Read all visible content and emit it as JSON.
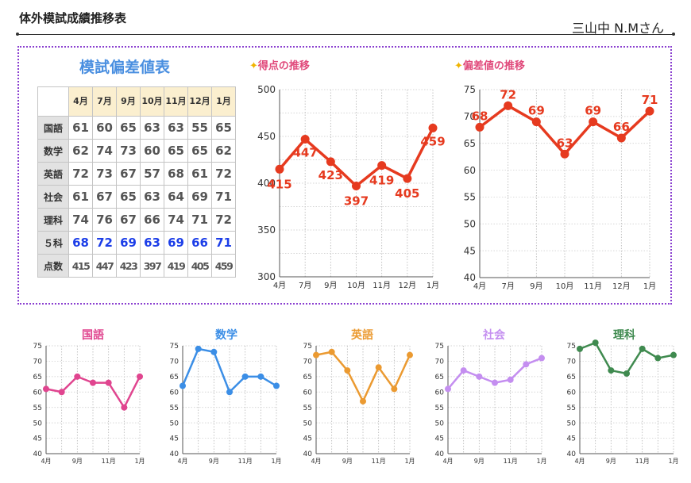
{
  "header": {
    "title": "体外模試成績推移表",
    "student": "三山中 N.Mさん"
  },
  "table": {
    "title": "模試偏差値表",
    "months": [
      "4月",
      "7月",
      "9月",
      "10月",
      "11月",
      "12月",
      "1月"
    ],
    "rows": [
      {
        "label": "国語",
        "values": [
          "61",
          "60",
          "65",
          "63",
          "63",
          "55",
          "65"
        ]
      },
      {
        "label": "数学",
        "values": [
          "62",
          "74",
          "73",
          "60",
          "65",
          "65",
          "62"
        ]
      },
      {
        "label": "英語",
        "values": [
          "72",
          "73",
          "67",
          "57",
          "68",
          "61",
          "72"
        ]
      },
      {
        "label": "社会",
        "values": [
          "61",
          "67",
          "65",
          "63",
          "64",
          "69",
          "71"
        ]
      },
      {
        "label": "理科",
        "values": [
          "74",
          "76",
          "67",
          "66",
          "74",
          "71",
          "72"
        ]
      },
      {
        "label": "５科",
        "values": [
          "68",
          "72",
          "69",
          "63",
          "69",
          "66",
          "71"
        ]
      },
      {
        "label": "点数",
        "values": [
          "415",
          "447",
          "423",
          "397",
          "419",
          "405",
          "459"
        ]
      }
    ]
  },
  "chart_data": [
    {
      "id": "score",
      "type": "line",
      "title": "得点の推移",
      "icon": "sparkle-icon",
      "categories": [
        "4月",
        "7月",
        "9月",
        "10月",
        "11月",
        "12月",
        "1月"
      ],
      "values": [
        415,
        447,
        423,
        397,
        419,
        405,
        459
      ],
      "ylim": [
        300,
        500
      ],
      "yticks": [
        300,
        350,
        400,
        450,
        500
      ],
      "color": "#e63a1f",
      "data_labels": true,
      "grid": true
    },
    {
      "id": "deviation",
      "type": "line",
      "title": "偏差値の推移",
      "icon": "sparkle-icon",
      "categories": [
        "4月",
        "7月",
        "9月",
        "10月",
        "11月",
        "12月",
        "1月"
      ],
      "values": [
        68,
        72,
        69,
        63,
        69,
        66,
        71
      ],
      "ylim": [
        40,
        75
      ],
      "yticks": [
        40,
        45,
        50,
        55,
        60,
        65,
        70,
        75
      ],
      "color": "#e63a1f",
      "data_labels": true,
      "grid": true
    },
    {
      "id": "kokugo",
      "type": "line",
      "title": "国語",
      "categories": [
        "4月",
        "",
        "9月",
        "",
        "11月",
        "",
        "1月"
      ],
      "values": [
        61,
        60,
        65,
        63,
        63,
        55,
        65
      ],
      "ylim": [
        40,
        75
      ],
      "yticks": [
        40,
        45,
        50,
        55,
        60,
        65,
        70,
        75
      ],
      "color": "#e0458f",
      "grid": true
    },
    {
      "id": "sugaku",
      "type": "line",
      "title": "数学",
      "categories": [
        "4月",
        "",
        "9月",
        "",
        "11月",
        "",
        "1月"
      ],
      "values": [
        62,
        74,
        73,
        60,
        65,
        65,
        62
      ],
      "ylim": [
        40,
        75
      ],
      "yticks": [
        40,
        45,
        50,
        55,
        60,
        65,
        70,
        75
      ],
      "color": "#3b8ee6",
      "grid": true
    },
    {
      "id": "eigo",
      "type": "line",
      "title": "英語",
      "categories": [
        "4月",
        "",
        "9月",
        "",
        "11月",
        "",
        "1月"
      ],
      "values": [
        72,
        73,
        67,
        57,
        68,
        61,
        72
      ],
      "ylim": [
        40,
        75
      ],
      "yticks": [
        40,
        45,
        50,
        55,
        60,
        65,
        70,
        75
      ],
      "color": "#eb9a31",
      "grid": true
    },
    {
      "id": "shakai",
      "type": "line",
      "title": "社会",
      "categories": [
        "4月",
        "",
        "9月",
        "",
        "11月",
        "",
        "1月"
      ],
      "values": [
        61,
        67,
        65,
        63,
        64,
        69,
        71
      ],
      "ylim": [
        40,
        75
      ],
      "yticks": [
        40,
        45,
        50,
        55,
        60,
        65,
        70,
        75
      ],
      "color": "#c48ef0",
      "grid": true
    },
    {
      "id": "rika",
      "type": "line",
      "title": "理科",
      "categories": [
        "4月",
        "",
        "9月",
        "",
        "11月",
        "",
        "1月"
      ],
      "values": [
        74,
        76,
        67,
        66,
        74,
        71,
        72
      ],
      "ylim": [
        40,
        75
      ],
      "yticks": [
        40,
        45,
        50,
        55,
        60,
        65,
        70,
        75
      ],
      "color": "#3f8a4f",
      "grid": true
    }
  ]
}
